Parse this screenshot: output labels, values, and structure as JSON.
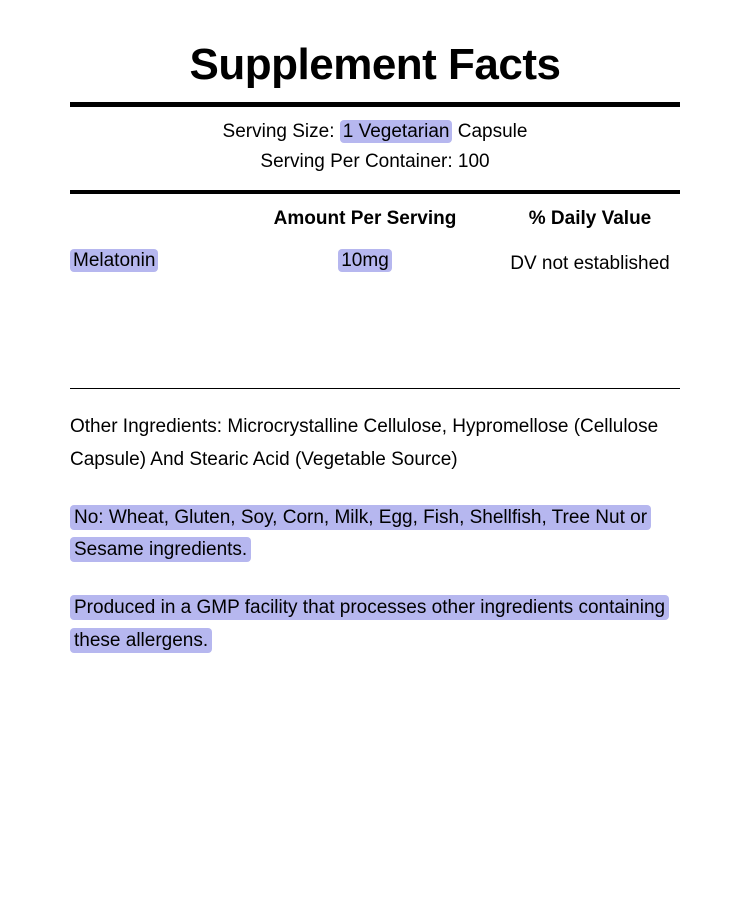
{
  "title": "Supplement Facts",
  "serving": {
    "size_prefix": "Serving Size: ",
    "size_hl": "1 Vegetarian",
    "size_suffix": " Capsule",
    "per_container": "Serving Per Container: 100"
  },
  "headers": {
    "amount": "Amount Per Serving",
    "dv": "% Daily Value"
  },
  "row": {
    "name": "Melatonin",
    "amount": "10mg",
    "dv": "DV not established"
  },
  "notes": {
    "other_ingredients": "Other Ingredients: Microcrystalline Cellulose, Hypromellose (Cellulose Capsule) And Stearic Acid (Vegetable Source)",
    "allergen_free": "No: Wheat, Gluten, Soy, Corn, Milk, Egg, Fish, Shellfish, Tree Nut or Sesame ingredients.",
    "facility": "Produced in a GMP facility that processes other ingredients containing these allergens."
  },
  "style": {
    "highlight_color": "#b6b7ef",
    "background_color": "#ffffff",
    "text_color": "#000000",
    "title_fontsize": 44,
    "body_fontsize": 19
  }
}
